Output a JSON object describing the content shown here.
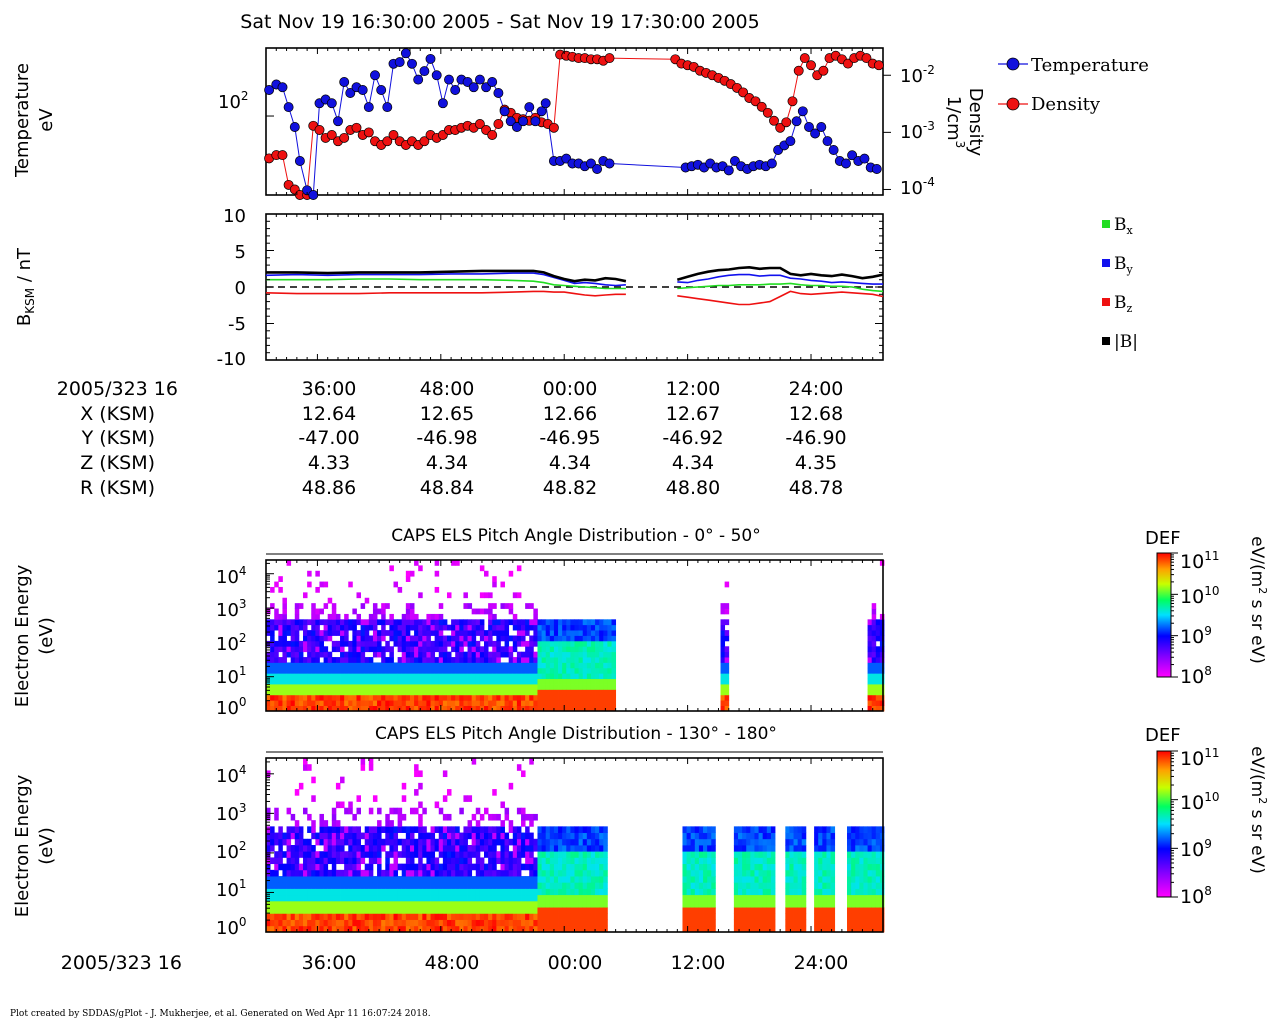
{
  "title": "Sat Nov 19 16:30:00 2005 - Sat Nov 19 17:30:00 2005",
  "footer": "Plot created by SDDAS/gPlot - J. Mukherjee, et al.  Generated on Wed Apr 11 16:07:24 2018.",
  "panel1": {
    "ylabel_left_1": "Temperature",
    "ylabel_left_2": "eV",
    "ylabel_right_1": "Density",
    "ylabel_right_2": "1/cm",
    "ylabel_right_sup": "3",
    "yticks_left": [
      {
        "base": "10",
        "exp": "2"
      }
    ],
    "yticks_right": [
      {
        "base": "10",
        "exp": "-2"
      },
      {
        "base": "10",
        "exp": "-3"
      },
      {
        "base": "10",
        "exp": "-4"
      }
    ],
    "legend": [
      "Temperature",
      "Density"
    ]
  },
  "panel2": {
    "ylabel_main": "B",
    "ylabel_sub": "KSM",
    "ylabel_unit": " / nT",
    "yticks": [
      "10",
      "5",
      "0",
      "-5",
      "-10"
    ],
    "legend": [
      {
        "name": "B",
        "sub": "x",
        "color": "#22dd22"
      },
      {
        "name": "B",
        "sub": "y",
        "color": "#1111ee"
      },
      {
        "name": "B",
        "sub": "z",
        "color": "#ee1111"
      },
      {
        "name": "|B|",
        "sub": "",
        "color": "#000000"
      }
    ]
  },
  "ephemeris": {
    "header": "2005/323 16",
    "rows": [
      {
        "label": "X (KSM)",
        "values": [
          "12.64",
          "12.65",
          "12.66",
          "12.67",
          "12.68"
        ]
      },
      {
        "label": "Y (KSM)",
        "values": [
          "-47.00",
          "-46.98",
          "-46.95",
          "-46.92",
          "-46.90"
        ]
      },
      {
        "label": "Z (KSM)",
        "values": [
          "4.33",
          "4.34",
          "4.34",
          "4.34",
          "4.35"
        ]
      },
      {
        "label": "R (KSM)",
        "values": [
          "48.86",
          "48.84",
          "48.82",
          "48.80",
          "48.78"
        ]
      }
    ],
    "time_ticks": [
      "36:00",
      "48:00",
      "00:00",
      "12:00",
      "24:00"
    ]
  },
  "spectro1": {
    "title": "CAPS ELS Pitch Angle Distribution - 0° - 50°",
    "ylabel1": "Electron Energy",
    "ylabel2": "(eV)",
    "yticks": [
      {
        "base": "10",
        "exp": "4"
      },
      {
        "base": "10",
        "exp": "3"
      },
      {
        "base": "10",
        "exp": "2"
      },
      {
        "base": "10",
        "exp": "1"
      },
      {
        "base": "10",
        "exp": "0"
      }
    ]
  },
  "spectro2": {
    "title": "CAPS ELS Pitch Angle Distribution - 130° - 180°",
    "ylabel1": "Electron Energy",
    "ylabel2": "(eV)",
    "yticks": [
      {
        "base": "10",
        "exp": "4"
      },
      {
        "base": "10",
        "exp": "3"
      },
      {
        "base": "10",
        "exp": "2"
      },
      {
        "base": "10",
        "exp": "1"
      },
      {
        "base": "10",
        "exp": "0"
      }
    ]
  },
  "colorbar": {
    "title": "DEF",
    "unit_pre": "eV/(m",
    "unit_sup": "2",
    "unit_post": " s sr eV)",
    "ticks": [
      {
        "base": "10",
        "exp": "11"
      },
      {
        "base": "10",
        "exp": "10"
      },
      {
        "base": "10",
        "exp": "9"
      },
      {
        "base": "10",
        "exp": "8"
      }
    ]
  },
  "bottom_axis": {
    "header": "2005/323 16",
    "ticks": [
      "36:00",
      "48:00",
      "00:00",
      "12:00",
      "24:00"
    ]
  },
  "colors": {
    "temperature": "#1111dd",
    "density": "#ee1111"
  },
  "chart_data": [
    {
      "type": "scatter",
      "title": "",
      "x_unit": "minutes after 2005/323 16:30",
      "xlim": [
        0,
        60
      ],
      "series": [
        {
          "name": "Temperature",
          "axis": "left_log",
          "ylim": [
            20,
            400
          ],
          "x": [
            0.3,
            1.0,
            1.6,
            2.2,
            2.8,
            3.3,
            4.0,
            4.6,
            5.2,
            5.8,
            6.4,
            7.0,
            7.6,
            8.2,
            8.8,
            9.4,
            10.0,
            10.6,
            11.2,
            11.8,
            12.4,
            13.0,
            13.6,
            14.2,
            14.8,
            15.4,
            16.0,
            16.6,
            17.2,
            17.8,
            18.4,
            19.0,
            19.6,
            20.2,
            20.8,
            21.4,
            22.0,
            22.6,
            23.2,
            23.8,
            24.4,
            25.0,
            25.6,
            26.2,
            26.8,
            27.2,
            28.0,
            28.6,
            29.2,
            29.8,
            30.4,
            31.0,
            31.6,
            32.2,
            32.8,
            33.4,
            40.8,
            41.4,
            42.0,
            42.6,
            43.2,
            43.8,
            44.4,
            45.0,
            45.6,
            46.2,
            46.8,
            47.4,
            48.0,
            48.6,
            49.2,
            49.8,
            50.4,
            51.0,
            51.6,
            52.2,
            52.8,
            53.4,
            54.0,
            54.6,
            55.2,
            55.8,
            56.4,
            57.0,
            57.6,
            58.2,
            58.8,
            59.4
          ],
          "y": [
            170,
            190,
            180,
            120,
            80,
            40,
            22,
            20,
            130,
            140,
            130,
            90,
            200,
            160,
            180,
            170,
            120,
            230,
            170,
            120,
            290,
            300,
            360,
            290,
            210,
            250,
            320,
            230,
            130,
            210,
            170,
            210,
            200,
            180,
            210,
            180,
            200,
            160,
            110,
            90,
            80,
            90,
            120,
            90,
            110,
            130,
            40,
            40,
            42,
            38,
            38,
            36,
            38,
            34,
            40,
            38,
            35,
            36,
            37,
            35,
            38,
            35,
            36,
            33,
            40,
            36,
            34,
            36,
            37,
            36,
            38,
            50,
            55,
            60,
            90,
            110,
            80,
            70,
            80,
            60,
            50,
            40,
            38,
            45,
            40,
            42,
            35,
            34
          ]
        },
        {
          "name": "Density",
          "axis": "right_log",
          "ylim": [
            8e-05,
            0.03
          ],
          "x": [
            0.3,
            1.0,
            1.6,
            2.2,
            2.8,
            3.3,
            4.0,
            4.6,
            5.2,
            5.8,
            6.4,
            7.0,
            7.6,
            8.2,
            8.8,
            9.4,
            10.0,
            10.6,
            11.2,
            11.8,
            12.4,
            13.0,
            13.6,
            14.2,
            14.8,
            15.4,
            16.0,
            16.6,
            17.2,
            17.8,
            18.4,
            19.0,
            19.6,
            20.2,
            20.8,
            21.4,
            22.0,
            22.6,
            23.2,
            23.8,
            24.4,
            25.0,
            25.6,
            26.2,
            26.8,
            27.4,
            28.0,
            28.6,
            29.2,
            29.8,
            30.4,
            31.0,
            31.6,
            32.2,
            32.8,
            33.4,
            39.8,
            40.4,
            41.0,
            41.6,
            42.2,
            42.8,
            43.4,
            44.0,
            44.6,
            45.2,
            45.8,
            46.4,
            47.0,
            47.6,
            48.2,
            48.8,
            49.4,
            50.0,
            50.6,
            51.2,
            51.8,
            52.4,
            53.0,
            53.6,
            54.2,
            54.8,
            55.4,
            56.0,
            56.6,
            57.2,
            57.8,
            58.4,
            59.0,
            59.6
          ],
          "y": [
            0.00035,
            0.0004,
            0.0004,
            0.00012,
            0.0001,
            8e-05,
            8e-05,
            0.0013,
            0.0011,
            0.0008,
            0.0009,
            0.0007,
            0.0008,
            0.0011,
            0.0012,
            0.0009,
            0.001,
            0.0007,
            0.0006,
            0.0007,
            0.0009,
            0.0007,
            0.0006,
            0.0007,
            0.0006,
            0.0007,
            0.0009,
            0.0008,
            0.0009,
            0.0011,
            0.0011,
            0.0012,
            0.0013,
            0.0012,
            0.0014,
            0.0011,
            0.0009,
            0.0014,
            0.0025,
            0.0022,
            0.0018,
            0.0017,
            0.0016,
            0.0018,
            0.0015,
            0.0014,
            0.0012,
            0.023,
            0.022,
            0.021,
            0.02,
            0.02,
            0.019,
            0.019,
            0.018,
            0.02,
            0.019,
            0.016,
            0.015,
            0.014,
            0.012,
            0.011,
            0.01,
            0.009,
            0.008,
            0.007,
            0.006,
            0.005,
            0.004,
            0.0035,
            0.0028,
            0.0022,
            0.0016,
            0.0012,
            0.0015,
            0.0035,
            0.012,
            0.02,
            0.015,
            0.01,
            0.012,
            0.02,
            0.022,
            0.019,
            0.016,
            0.02,
            0.022,
            0.02,
            0.016,
            0.015
          ]
        }
      ]
    },
    {
      "type": "line",
      "title": "",
      "ylabel": "BKSM / nT",
      "ylim": [
        -10,
        10
      ],
      "xlim": [
        0,
        60
      ],
      "x": [
        0,
        3,
        6,
        9,
        12,
        15,
        18,
        21,
        24,
        26,
        27,
        28,
        29,
        30,
        31,
        32,
        33,
        34,
        35,
        36,
        40,
        41,
        42,
        43,
        44,
        45,
        46,
        47,
        48,
        49,
        50,
        51,
        52,
        53,
        54,
        55,
        56,
        57,
        58,
        59,
        60
      ],
      "series": [
        {
          "name": "Bx",
          "values": [
            1.0,
            1.0,
            1.0,
            1.1,
            1.1,
            1.0,
            1.0,
            1.0,
            0.9,
            0.8,
            0.6,
            0.3,
            0.2,
            0.1,
            0.0,
            -0.1,
            -0.2,
            -0.2,
            -0.2,
            null,
            -0.2,
            -0.1,
            0.0,
            0.1,
            0.2,
            0.2,
            0.3,
            0.3,
            0.3,
            0.4,
            0.4,
            0.5,
            0.3,
            0.2,
            0.2,
            0.1,
            0.1,
            0.0,
            -0.3,
            -0.5,
            -0.6
          ]
        },
        {
          "name": "By",
          "values": [
            1.6,
            1.7,
            1.6,
            1.7,
            1.7,
            1.7,
            1.8,
            1.8,
            1.9,
            1.9,
            1.7,
            1.3,
            0.9,
            0.5,
            0.6,
            0.5,
            0.3,
            0.2,
            0.3,
            null,
            0.7,
            0.6,
            0.9,
            1.1,
            1.4,
            1.6,
            1.7,
            1.7,
            1.5,
            1.6,
            1.6,
            1.2,
            1.1,
            0.9,
            0.8,
            0.6,
            0.7,
            0.6,
            0.5,
            0.4,
            0.4
          ]
        },
        {
          "name": "Bz",
          "values": [
            -0.8,
            -0.9,
            -0.9,
            -0.9,
            -0.8,
            -0.8,
            -0.8,
            -0.8,
            -0.7,
            -0.6,
            -0.6,
            -0.7,
            -0.7,
            -0.9,
            -1.1,
            -1.2,
            -1.1,
            -1.0,
            -1.0,
            null,
            -1.2,
            -1.4,
            -1.6,
            -1.8,
            -2.0,
            -2.2,
            -2.4,
            -2.4,
            -2.2,
            -2.0,
            -1.3,
            -0.6,
            -0.9,
            -1.0,
            -0.9,
            -0.8,
            -0.7,
            -0.8,
            -0.9,
            -1.0,
            -1.3
          ]
        },
        {
          "name": "|B|",
          "values": [
            2.0,
            2.0,
            1.9,
            2.0,
            2.0,
            2.0,
            2.1,
            2.2,
            2.2,
            2.2,
            2.0,
            1.5,
            1.1,
            0.8,
            1.0,
            0.9,
            1.2,
            1.1,
            0.8,
            null,
            1.0,
            1.4,
            1.8,
            2.1,
            2.3,
            2.4,
            2.6,
            2.7,
            2.5,
            2.6,
            2.6,
            1.8,
            1.6,
            1.8,
            1.6,
            1.5,
            1.7,
            1.5,
            1.2,
            1.4,
            1.7
          ]
        }
      ]
    },
    {
      "type": "heatmap",
      "title": "CAPS ELS Pitch Angle Distribution - 0° - 50°",
      "ylabel": "Electron Energy (eV)",
      "ylim_log10": [
        0,
        4.4
      ],
      "colorbar_log10": [
        8,
        11
      ],
      "data_intervals_minutes": [
        [
          0,
          34
        ],
        [
          44.2,
          44.8
        ],
        [
          58.5,
          60
        ]
      ]
    },
    {
      "type": "heatmap",
      "title": "CAPS ELS Pitch Angle Distribution - 130° - 180°",
      "ylabel": "Electron Energy (eV)",
      "ylim_log10": [
        0,
        4.4
      ],
      "colorbar_log10": [
        8,
        11
      ],
      "data_intervals_minutes": [
        [
          0,
          33
        ],
        [
          40.5,
          43.5
        ],
        [
          45.5,
          49.5
        ],
        [
          50.5,
          52.5
        ],
        [
          53.3,
          55
        ],
        [
          56.5,
          60
        ]
      ]
    }
  ]
}
